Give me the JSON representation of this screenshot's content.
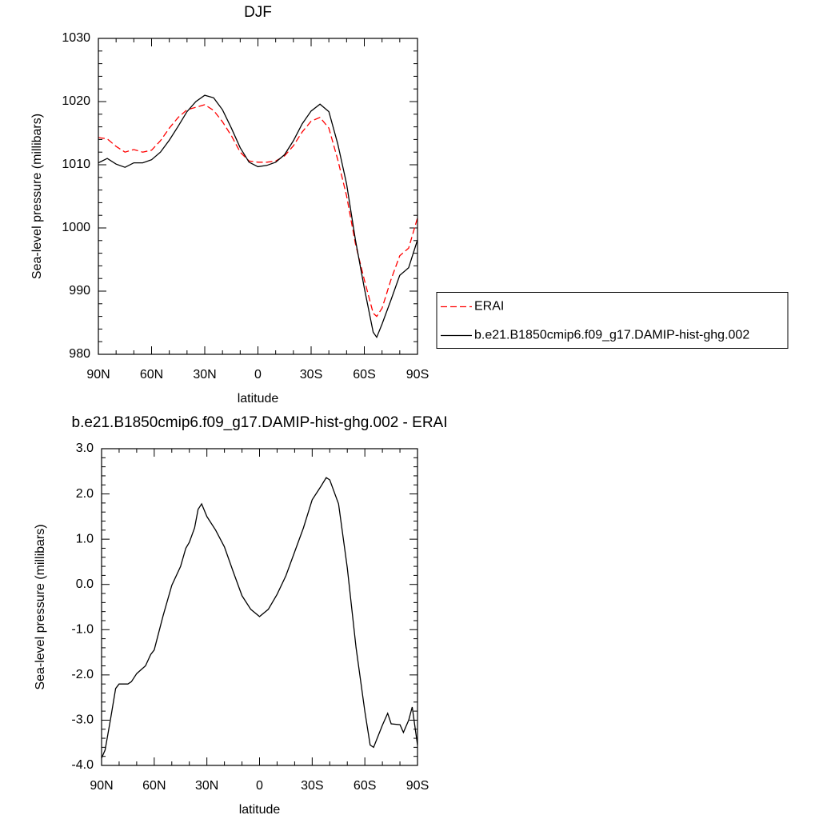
{
  "chart_data": [
    {
      "type": "line",
      "title": "DJF",
      "xlabel": "latitude",
      "ylabel": "Sea-level pressure (millibars)",
      "x": [
        90,
        85,
        80,
        75,
        70,
        65,
        60,
        55,
        50,
        45,
        40,
        35,
        30,
        25,
        20,
        15,
        10,
        5,
        0,
        -5,
        -10,
        -15,
        -20,
        -25,
        -30,
        -35,
        -40,
        -45,
        -50,
        -55,
        -60,
        -65,
        -67,
        -70,
        -75,
        -80,
        -85,
        -90
      ],
      "series": [
        {
          "name": "ERAI",
          "color": "#ff0000",
          "line_style": "dashed",
          "values": [
            1014.3,
            1014.1,
            1012.9,
            1012,
            1012.4,
            1012,
            1012.3,
            1013.8,
            1015.8,
            1017.5,
            1018.7,
            1019.1,
            1019.5,
            1018.6,
            1016.8,
            1014.6,
            1012,
            1010.6,
            1010.4,
            1010.4,
            1010.6,
            1011.4,
            1013,
            1015.2,
            1016.9,
            1017.5,
            1015.8,
            1010.8,
            1005.1,
            997.5,
            991.8,
            986.5,
            986,
            987.3,
            991.8,
            995.6,
            996.8,
            1001.6
          ]
        },
        {
          "name": "b.e21.B1850cmip6.f09_g17.DAMIP-hist-ghg.002",
          "color": "#000000",
          "line_style": "solid",
          "values": [
            1010.3,
            1011,
            1010.1,
            1009.6,
            1010.3,
            1010.3,
            1010.8,
            1012,
            1013.9,
            1016.1,
            1018.4,
            1020,
            1021,
            1020.6,
            1018.7,
            1015.8,
            1012.7,
            1010.4,
            1009.7,
            1009.9,
            1010.4,
            1011.6,
            1013.8,
            1016.5,
            1018.5,
            1019.6,
            1018.4,
            1013.3,
            1007,
            998.1,
            990.5,
            983.5,
            982.7,
            984.8,
            988.6,
            992.5,
            993.7,
            998.1
          ]
        }
      ],
      "xlim": [
        90,
        -90
      ],
      "xticks": [
        {
          "value": 90,
          "label": "90N"
        },
        {
          "value": 60,
          "label": "60N"
        },
        {
          "value": 30,
          "label": "30N"
        },
        0,
        {
          "value": -30,
          "label": "30S"
        },
        {
          "value": -60,
          "label": "60S"
        },
        {
          "value": -90,
          "label": "90S"
        }
      ],
      "ylim": [
        980,
        1030
      ],
      "yticks": [
        980,
        990,
        1000,
        1010,
        1020,
        1030
      ],
      "legend": "right"
    },
    {
      "type": "line",
      "title": "b.e21.B1850cmip6.f09_g17.DAMIP-hist-ghg.002 - ERAI",
      "xlabel": "latitude",
      "ylabel": "Sea-level pressure (millibars)",
      "x": [
        90,
        88,
        85,
        82,
        80,
        75,
        73,
        70,
        65,
        62,
        60,
        55,
        50,
        45,
        42,
        40,
        37,
        35,
        33,
        30,
        25,
        20,
        15,
        10,
        5,
        0,
        -5,
        -10,
        -15,
        -20,
        -25,
        -30,
        -35,
        -38,
        -40,
        -45,
        -50,
        -55,
        -60,
        -63,
        -65,
        -70,
        -73,
        -75,
        -80,
        -82,
        -85,
        -87,
        -90
      ],
      "series": [
        {
          "color": "#000000",
          "line_style": "solid",
          "values": [
            -3.84,
            -3.66,
            -3.0,
            -2.3,
            -2.2,
            -2.2,
            -2.15,
            -1.97,
            -1.8,
            -1.55,
            -1.45,
            -0.7,
            -0.02,
            0.4,
            0.8,
            0.93,
            1.25,
            1.66,
            1.78,
            1.5,
            1.2,
            0.83,
            0.28,
            -0.25,
            -0.55,
            -0.71,
            -0.55,
            -0.22,
            0.19,
            0.72,
            1.25,
            1.87,
            2.17,
            2.36,
            2.31,
            1.78,
            0.37,
            -1.4,
            -2.81,
            -3.55,
            -3.6,
            -3.11,
            -2.85,
            -3.08,
            -3.1,
            -3.27,
            -3.0,
            -2.71,
            -3.55
          ]
        }
      ],
      "xlim": [
        90,
        -90
      ],
      "xticks": [
        {
          "value": 90,
          "label": "90N"
        },
        {
          "value": 60,
          "label": "60N"
        },
        {
          "value": 30,
          "label": "30N"
        },
        0,
        {
          "value": -30,
          "label": "30S"
        },
        {
          "value": -60,
          "label": "60S"
        },
        {
          "value": -90,
          "label": "90S"
        }
      ],
      "ylim": [
        -4,
        3
      ],
      "yticks": [
        {
          "value": -4,
          "label": "-4.0"
        },
        {
          "value": -3,
          "label": "-3.0"
        },
        {
          "value": -2,
          "label": "-2.0"
        },
        {
          "value": -1,
          "label": "-1.0"
        },
        {
          "value": 0,
          "label": "0.0"
        },
        {
          "value": 1,
          "label": "1.0"
        },
        {
          "value": 2,
          "label": "2.0"
        },
        {
          "value": 3,
          "label": "3.0"
        }
      ]
    }
  ]
}
